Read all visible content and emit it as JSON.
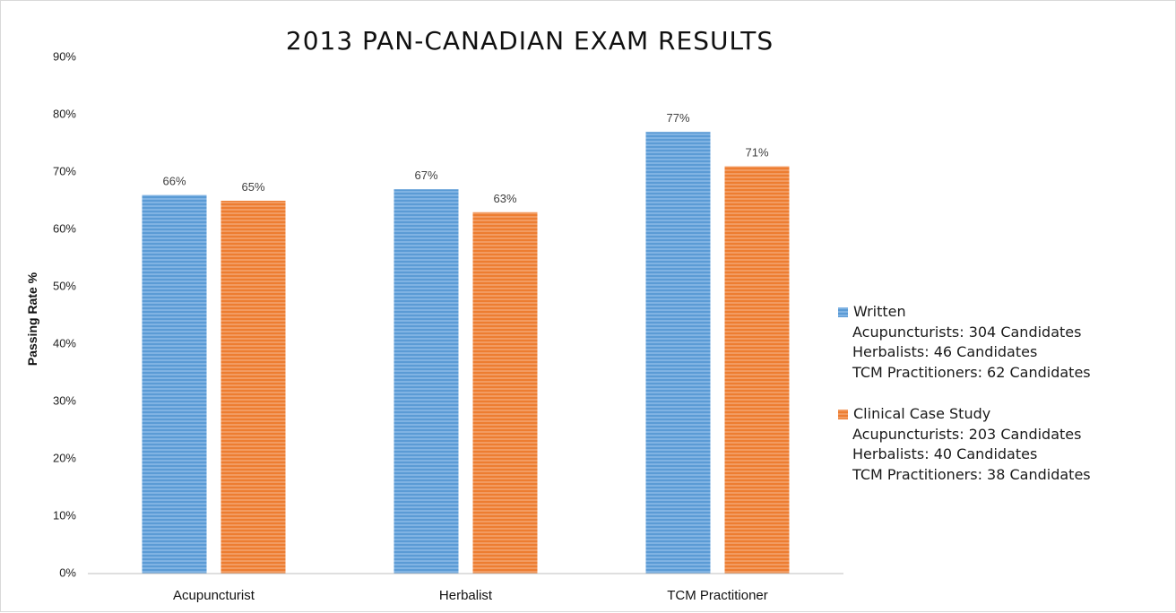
{
  "chart_data": {
    "type": "bar",
    "title": "2013 PAN-CANADIAN EXAM RESULTS",
    "xlabel": "",
    "ylabel": "Passing Rate %",
    "ylim": [
      0,
      90
    ],
    "yticks": [
      "0%",
      "10%",
      "20%",
      "30%",
      "40%",
      "50%",
      "60%",
      "70%",
      "80%",
      "90%"
    ],
    "categories": [
      "Acupuncturist",
      "Herbalist",
      "TCM Practitioner"
    ],
    "series": [
      {
        "name": "Written",
        "values": [
          66,
          67,
          77
        ],
        "labels": [
          "66%",
          "67%",
          "77%"
        ],
        "color": "#5B9BD5"
      },
      {
        "name": "Clinical Case Study",
        "values": [
          65,
          63,
          71
        ],
        "labels": [
          "65%",
          "63%",
          "71%"
        ],
        "color": "#ED7D31"
      }
    ],
    "legend": [
      {
        "label": "Written",
        "color": "#5B9BD5",
        "details": [
          "Acupuncturists: 304 Candidates",
          "Herbalists: 46 Candidates",
          "TCM Practitioners: 62 Candidates"
        ]
      },
      {
        "label": "Clinical Case Study",
        "color": "#ED7D31",
        "details": [
          "Acupuncturists: 203 Candidates",
          "Herbalists: 40 Candidates",
          "TCM Practitioners: 38 Candidates"
        ]
      }
    ],
    "grid": false,
    "legend_position": "right"
  }
}
